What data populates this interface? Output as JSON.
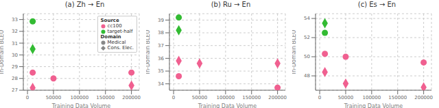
{
  "chart_data": [
    {
      "type": "scatter",
      "title": "(a) Zh → En",
      "x_label": "Training Data Volume",
      "y_label": "In-Domain BLEU",
      "xlim": [
        -8000,
        215000
      ],
      "xticks": [
        0,
        50000,
        100000,
        150000,
        200000
      ],
      "ylim": [
        27,
        33.5
      ],
      "yticks": [
        27,
        28,
        29,
        30,
        31,
        32,
        33
      ],
      "grid": true,
      "series": [
        {
          "color": "#f06090",
          "marker": "circle",
          "x": [
            10000,
            50000,
            200000
          ],
          "values": [
            28.5,
            28.0,
            28.5
          ]
        },
        {
          "color": "#f06090",
          "marker": "diamond",
          "x": [
            10000,
            200000
          ],
          "values": [
            27.2,
            27.4
          ]
        },
        {
          "color": "#33bb33",
          "marker": "circle",
          "x": [
            10000
          ],
          "values": [
            32.85
          ]
        },
        {
          "color": "#33bb33",
          "marker": "diamond",
          "x": [
            10000
          ],
          "values": [
            30.5
          ]
        }
      ],
      "legend": "upper right",
      "legend_groups": [
        {
          "title": "Source",
          "entries": [
            {
              "name": "cc100",
              "color": "#f06090",
              "marker": "circle"
            },
            {
              "name": "target-half",
              "color": "#33bb33",
              "marker": "circle"
            }
          ]
        },
        {
          "title": "Domain",
          "entries": [
            {
              "name": "Medical",
              "color": "#888888",
              "marker": "circle"
            },
            {
              "name": "Cons. Elec.",
              "color": "#888888",
              "marker": "diamond"
            }
          ]
        }
      ]
    },
    {
      "type": "scatter",
      "title": "(b) Ru → En",
      "x_label": "Training Data Volume",
      "y_label": "In-Domain BLEU",
      "xlim": [
        -8000,
        215000
      ],
      "xticks": [
        0,
        50000,
        100000,
        150000,
        200000
      ],
      "ylim": [
        33.5,
        39.5
      ],
      "yticks": [
        34,
        35,
        36,
        37,
        38,
        39
      ],
      "grid": true,
      "series": [
        {
          "color": "#f06090",
          "marker": "diamond",
          "x": [
            10000,
            50000,
            200000
          ],
          "values": [
            35.8,
            35.6,
            35.6
          ]
        },
        {
          "color": "#f06090",
          "marker": "circle",
          "x": [
            10000,
            200000
          ],
          "values": [
            34.6,
            33.7
          ]
        },
        {
          "color": "#33bb33",
          "marker": "circle",
          "x": [
            10000
          ],
          "values": [
            39.2
          ]
        },
        {
          "color": "#33bb33",
          "marker": "diamond",
          "x": [
            10000
          ],
          "values": [
            38.2
          ]
        }
      ]
    },
    {
      "type": "scatter",
      "title": "(c) Es → En",
      "x_label": "Training Data Volume",
      "y_label": "In-Domain BLEU",
      "xlim": [
        -8000,
        215000
      ],
      "xticks": [
        0,
        50000,
        100000,
        150000,
        200000
      ],
      "ylim": [
        46.5,
        54.5
      ],
      "yticks": [
        48,
        50,
        52,
        54
      ],
      "grid": true,
      "series": [
        {
          "color": "#f06090",
          "marker": "circle",
          "x": [
            10000,
            50000,
            200000
          ],
          "values": [
            50.3,
            50.0,
            49.4
          ]
        },
        {
          "color": "#f06090",
          "marker": "diamond",
          "x": [
            10000,
            50000,
            200000
          ],
          "values": [
            48.4,
            47.2,
            46.8
          ]
        },
        {
          "color": "#33bb33",
          "marker": "diamond",
          "x": [
            10000
          ],
          "values": [
            53.5
          ]
        },
        {
          "color": "#33bb33",
          "marker": "circle",
          "x": [
            10000
          ],
          "values": [
            52.5
          ]
        }
      ]
    }
  ]
}
